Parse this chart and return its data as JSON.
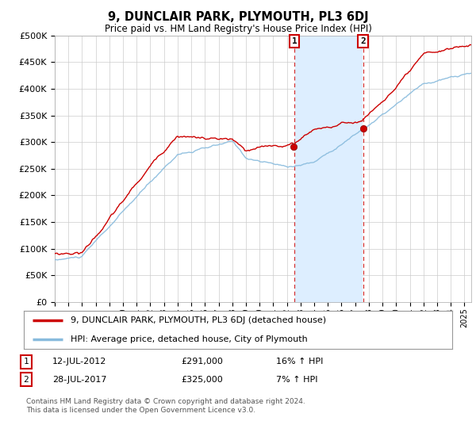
{
  "title": "9, DUNCLAIR PARK, PLYMOUTH, PL3 6DJ",
  "subtitle": "Price paid vs. HM Land Registry's House Price Index (HPI)",
  "ylabel_ticks": [
    "£0",
    "£50K",
    "£100K",
    "£150K",
    "£200K",
    "£250K",
    "£300K",
    "£350K",
    "£400K",
    "£450K",
    "£500K"
  ],
  "ytick_values": [
    0,
    50000,
    100000,
    150000,
    200000,
    250000,
    300000,
    350000,
    400000,
    450000,
    500000
  ],
  "ylim": [
    0,
    500000
  ],
  "xlim_start": 1995.0,
  "xlim_end": 2025.5,
  "line1_color": "#cc0000",
  "line2_color": "#88bbdd",
  "fill_color": "#ddeeff",
  "marker1_date": 2012.54,
  "marker2_date": 2017.57,
  "marker1_price": 291000,
  "marker2_price": 325000,
  "sale1_label": "12-JUL-2012",
  "sale1_price": "£291,000",
  "sale1_hpi": "16% ↑ HPI",
  "sale2_label": "28-JUL-2017",
  "sale2_price": "£325,000",
  "sale2_hpi": "7% ↑ HPI",
  "legend1": "9, DUNCLAIR PARK, PLYMOUTH, PL3 6DJ (detached house)",
  "legend2": "HPI: Average price, detached house, City of Plymouth",
  "footnote": "Contains HM Land Registry data © Crown copyright and database right 2024.\nThis data is licensed under the Open Government Licence v3.0.",
  "background_color": "#ffffff",
  "grid_color": "#cccccc"
}
